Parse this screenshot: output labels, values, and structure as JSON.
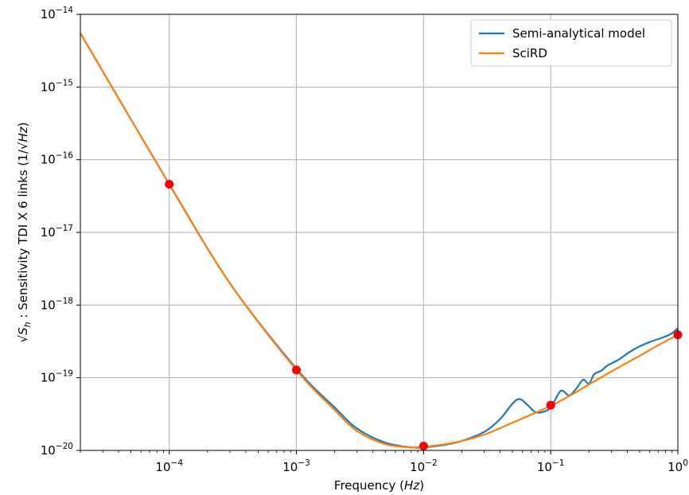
{
  "chart_data": {
    "type": "line",
    "x_scale": "log",
    "y_scale": "log",
    "xlim": [
      2e-05,
      1
    ],
    "ylim": [
      1e-20,
      1e-14
    ],
    "grid": true,
    "legend_position": "top-right",
    "xlabel": {
      "text": "Frequency (",
      "italic": "Hz",
      "close": ")"
    },
    "ylabel": {
      "sqrt_part": "S",
      "sqrt_sub": "h",
      "middle": " : Sensitivity TDI X 6 links ",
      "unit_prefix": "(1/",
      "unit_sqrt": "Hz",
      "unit_suffix": ")"
    },
    "x_ticks": [
      {
        "value": 0.0001,
        "base": "10",
        "exp": "−4"
      },
      {
        "value": 0.001,
        "base": "10",
        "exp": "−3"
      },
      {
        "value": 0.01,
        "base": "10",
        "exp": "−2"
      },
      {
        "value": 0.1,
        "base": "10",
        "exp": "−1"
      },
      {
        "value": 1,
        "base": "10",
        "exp": "0"
      }
    ],
    "y_ticks": [
      {
        "value": 1e-20,
        "base": "10",
        "exp": "−20"
      },
      {
        "value": 1e-19,
        "base": "10",
        "exp": "−19"
      },
      {
        "value": 1e-18,
        "base": "10",
        "exp": "−18"
      },
      {
        "value": 1e-17,
        "base": "10",
        "exp": "−17"
      },
      {
        "value": 1e-16,
        "base": "10",
        "exp": "−16"
      },
      {
        "value": 1e-15,
        "base": "10",
        "exp": "−15"
      },
      {
        "value": 1e-14,
        "base": "10",
        "exp": "−14"
      }
    ],
    "series": [
      {
        "name": "Semi-analytical model",
        "color": "#1f77b4",
        "x": [
          2e-05,
          0.0001,
          0.0003,
          0.001,
          0.002,
          0.003,
          0.005,
          0.008,
          0.01,
          0.015,
          0.02,
          0.03,
          0.04,
          0.05,
          0.057,
          0.065,
          0.075,
          0.085,
          0.1,
          0.12,
          0.14,
          0.16,
          0.18,
          0.2,
          0.22,
          0.25,
          0.28,
          0.31,
          0.35,
          0.4,
          0.45,
          0.5,
          0.6,
          0.7,
          0.8,
          0.9,
          1
        ],
        "y": [
          5.5e-15,
          4.6e-17,
          2e-18,
          1.33e-19,
          3.9e-20,
          2e-20,
          1.28e-20,
          1.1e-20,
          1.1e-20,
          1.2e-20,
          1.35e-20,
          1.8e-20,
          2.7e-20,
          4.4e-20,
          5.1e-20,
          4.3e-20,
          3.4e-20,
          3.35e-20,
          3.9e-20,
          6.6e-20,
          5.7e-20,
          7.2e-20,
          9.4e-20,
          8.3e-20,
          1.12e-19,
          1.25e-19,
          1.48e-19,
          1.62e-19,
          1.82e-19,
          2.15e-19,
          2.45e-19,
          2.7e-19,
          3.1e-19,
          3.4e-19,
          3.7e-19,
          4.1e-19,
          4.8e-19
        ]
      },
      {
        "name": "SciRD",
        "color": "#ff7f0e",
        "x": [
          2e-05,
          0.0001,
          0.0003,
          0.001,
          0.002,
          0.003,
          0.005,
          0.008,
          0.01,
          0.015,
          0.02,
          0.03,
          0.05,
          0.07,
          0.1,
          0.15,
          0.2,
          0.3,
          0.5,
          0.7,
          1
        ],
        "y": [
          5.5e-15,
          4.6e-17,
          2e-18,
          1.28e-19,
          3.6e-20,
          1.85e-20,
          1.22e-20,
          1.1e-20,
          1.12e-20,
          1.22e-20,
          1.35e-20,
          1.65e-20,
          2.4e-20,
          3.1e-20,
          4.1e-20,
          6e-20,
          8.1e-20,
          1.22e-19,
          2e-19,
          2.8e-19,
          3.9e-19
        ]
      }
    ],
    "markers": {
      "color": "#ff0000",
      "x": [
        0.0001,
        0.001,
        0.01,
        0.1,
        1
      ],
      "y": [
        4.6e-17,
        1.28e-19,
        1.15e-20,
        4.2e-20,
        3.9e-19
      ]
    }
  }
}
